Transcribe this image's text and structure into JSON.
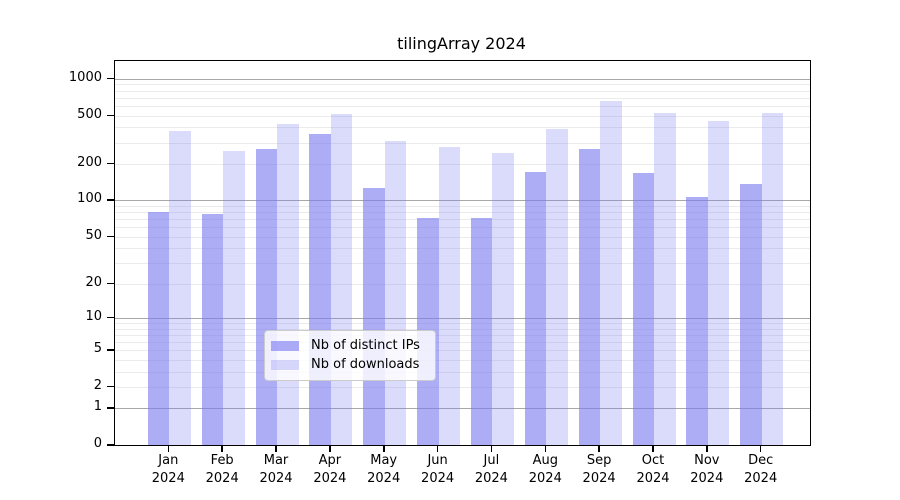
{
  "title": "tilingArray 2024",
  "legend": {
    "items": [
      {
        "label": "Nb of distinct IPs",
        "swatch": "ips-swatch",
        "color": "rgba(122,122,240,0.62)"
      },
      {
        "label": "Nb of downloads",
        "swatch": "downloads-swatch",
        "color": "rgba(122,122,240,0.27)"
      }
    ]
  },
  "chart_data": {
    "type": "bar",
    "title": "tilingArray 2024",
    "categories": [
      "Jan",
      "Feb",
      "Mar",
      "Apr",
      "May",
      "Jun",
      "Jul",
      "Aug",
      "Sep",
      "Oct",
      "Nov",
      "Dec"
    ],
    "category_year": "2024",
    "series": [
      {
        "name": "Nb of distinct IPs",
        "color": "rgba(122,122,240,0.62)",
        "values": [
          80,
          77,
          267,
          355,
          127,
          71,
          72,
          172,
          264,
          168,
          106,
          137
        ]
      },
      {
        "name": "Nb of downloads",
        "color": "rgba(122,122,240,0.27)",
        "values": [
          375,
          257,
          430,
          515,
          307,
          277,
          245,
          390,
          660,
          520,
          455,
          520
        ]
      }
    ],
    "xlabel": "",
    "ylabel": "",
    "yscale": "log10(value+1)",
    "ylim": [
      0,
      1400
    ],
    "y_ticks": [
      0,
      1,
      2,
      5,
      10,
      20,
      50,
      100,
      200,
      500,
      1000
    ],
    "grid": {
      "on": true,
      "major_color": "#a8a8a8",
      "minor_color": "#ebebeb"
    },
    "legend_position": "lower-center-inside"
  }
}
